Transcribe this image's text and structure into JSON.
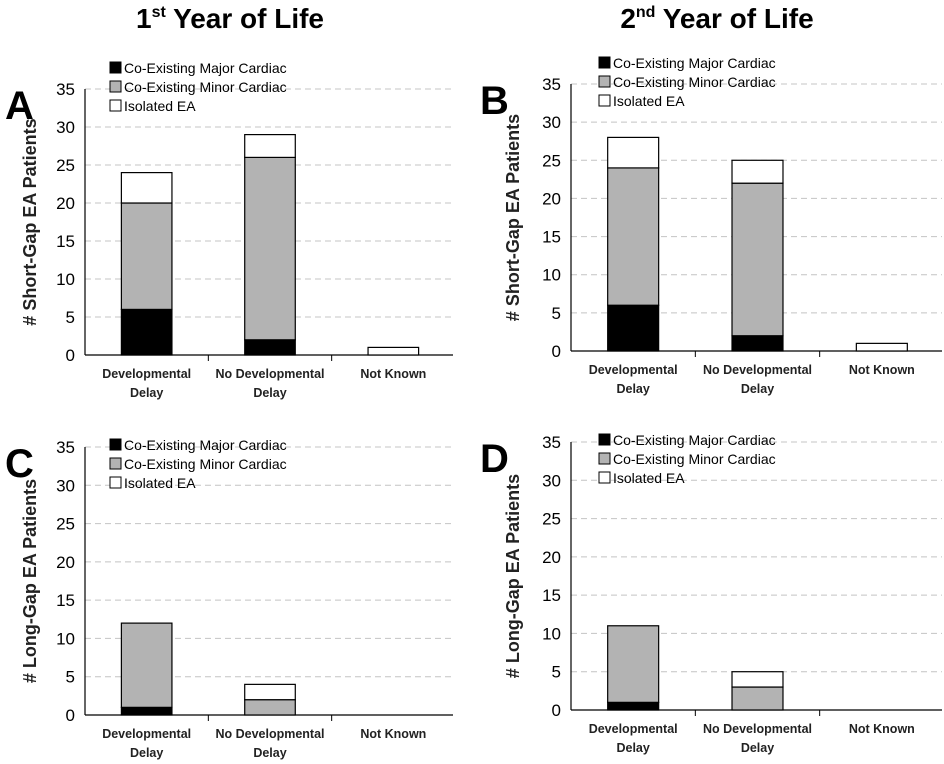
{
  "column_titles": [
    {
      "main": "1",
      "sup": "st",
      "rest": " Year of Life"
    },
    {
      "main": "2",
      "sup": "nd",
      "rest": " Year of Life"
    }
  ],
  "series_colors": {
    "major": "#000000",
    "minor": "#b3b3b3",
    "isolated": "#ffffff"
  },
  "chart_data": [
    {
      "type": "bar",
      "stacked": true,
      "panel": "A",
      "ylabel": "# Short-Gap EA Patients",
      "ylim": [
        0,
        35
      ],
      "yticks": [
        0,
        5,
        10,
        15,
        20,
        25,
        30,
        35
      ],
      "categories": [
        [
          "Developmental",
          "Delay"
        ],
        [
          "No Developmental",
          "Delay"
        ],
        [
          "Not Known"
        ]
      ],
      "series": [
        {
          "name": "Co-Existing Major Cardiac",
          "values": [
            6,
            2,
            0
          ]
        },
        {
          "name": "Co-Existing Minor Cardiac",
          "values": [
            14,
            24,
            0
          ]
        },
        {
          "name": "Isolated EA",
          "values": [
            4,
            3,
            1
          ]
        }
      ]
    },
    {
      "type": "bar",
      "stacked": true,
      "panel": "B",
      "ylabel": "# Short-Gap EA Patients",
      "ylim": [
        0,
        35
      ],
      "yticks": [
        0,
        5,
        10,
        15,
        20,
        25,
        30,
        35
      ],
      "categories": [
        [
          "Developmental",
          "Delay"
        ],
        [
          "No Developmental",
          "Delay"
        ],
        [
          "Not Known"
        ]
      ],
      "series": [
        {
          "name": "Co-Existing Major Cardiac",
          "values": [
            6,
            2,
            0
          ]
        },
        {
          "name": "Co-Existing Minor Cardiac",
          "values": [
            18,
            20,
            0
          ]
        },
        {
          "name": "Isolated EA",
          "values": [
            4,
            3,
            1
          ]
        }
      ]
    },
    {
      "type": "bar",
      "stacked": true,
      "panel": "C",
      "ylabel": "# Long-Gap EA Patients",
      "ylim": [
        0,
        35
      ],
      "yticks": [
        0,
        5,
        10,
        15,
        20,
        25,
        30,
        35
      ],
      "categories": [
        [
          "Developmental",
          "Delay"
        ],
        [
          "No Developmental",
          "Delay"
        ],
        [
          "Not Known"
        ]
      ],
      "series": [
        {
          "name": "Co-Existing Major Cardiac",
          "values": [
            1,
            0,
            0
          ]
        },
        {
          "name": "Co-Existing Minor Cardiac",
          "values": [
            11,
            2,
            0
          ]
        },
        {
          "name": "Isolated EA",
          "values": [
            0,
            2,
            0
          ]
        }
      ]
    },
    {
      "type": "bar",
      "stacked": true,
      "panel": "D",
      "ylabel": "# Long-Gap EA Patients",
      "ylim": [
        0,
        35
      ],
      "yticks": [
        0,
        5,
        10,
        15,
        20,
        25,
        30,
        35
      ],
      "categories": [
        [
          "Developmental",
          "Delay"
        ],
        [
          "No Developmental",
          "Delay"
        ],
        [
          "Not Known"
        ]
      ],
      "series": [
        {
          "name": "Co-Existing Major Cardiac",
          "values": [
            1,
            0,
            0
          ]
        },
        {
          "name": "Co-Existing Minor Cardiac",
          "values": [
            10,
            3,
            0
          ]
        },
        {
          "name": "Isolated EA",
          "values": [
            0,
            2,
            0
          ]
        }
      ]
    }
  ]
}
